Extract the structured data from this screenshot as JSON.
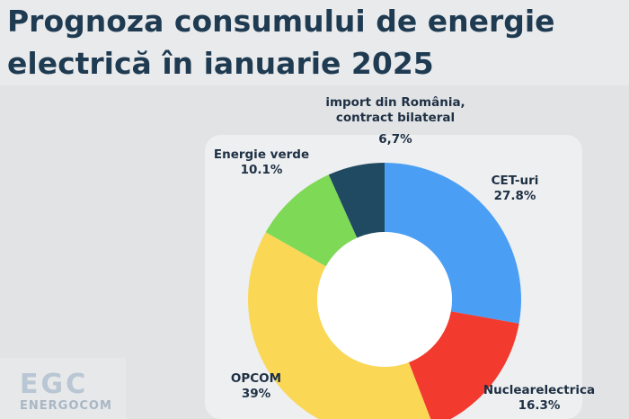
{
  "title": "Prognoza consumului de energie electrică în ianuarie 2025",
  "logo": {
    "mark": "EGC",
    "wordmark": "ENERGOCOM"
  },
  "chart_data": {
    "type": "pie",
    "variant": "donut",
    "unit": "%",
    "slices": [
      {
        "name": "CET-uri",
        "value": 27.8,
        "label": "27.8%",
        "color": "#4a9ff5"
      },
      {
        "name": "Nuclearelectrica",
        "value": 16.3,
        "label": "16.3%",
        "color": "#f23a2e"
      },
      {
        "name": "OPCOM",
        "value": 39,
        "label": "39%",
        "color": "#fbd756"
      },
      {
        "name": "Energie verde",
        "value": 10.1,
        "label": "10.1%",
        "color": "#7ed957"
      },
      {
        "name_lines": [
          "import din România,",
          "contract bilateral"
        ],
        "value": 6.7,
        "label": "6,7%",
        "color": "#1f4a61"
      }
    ]
  }
}
